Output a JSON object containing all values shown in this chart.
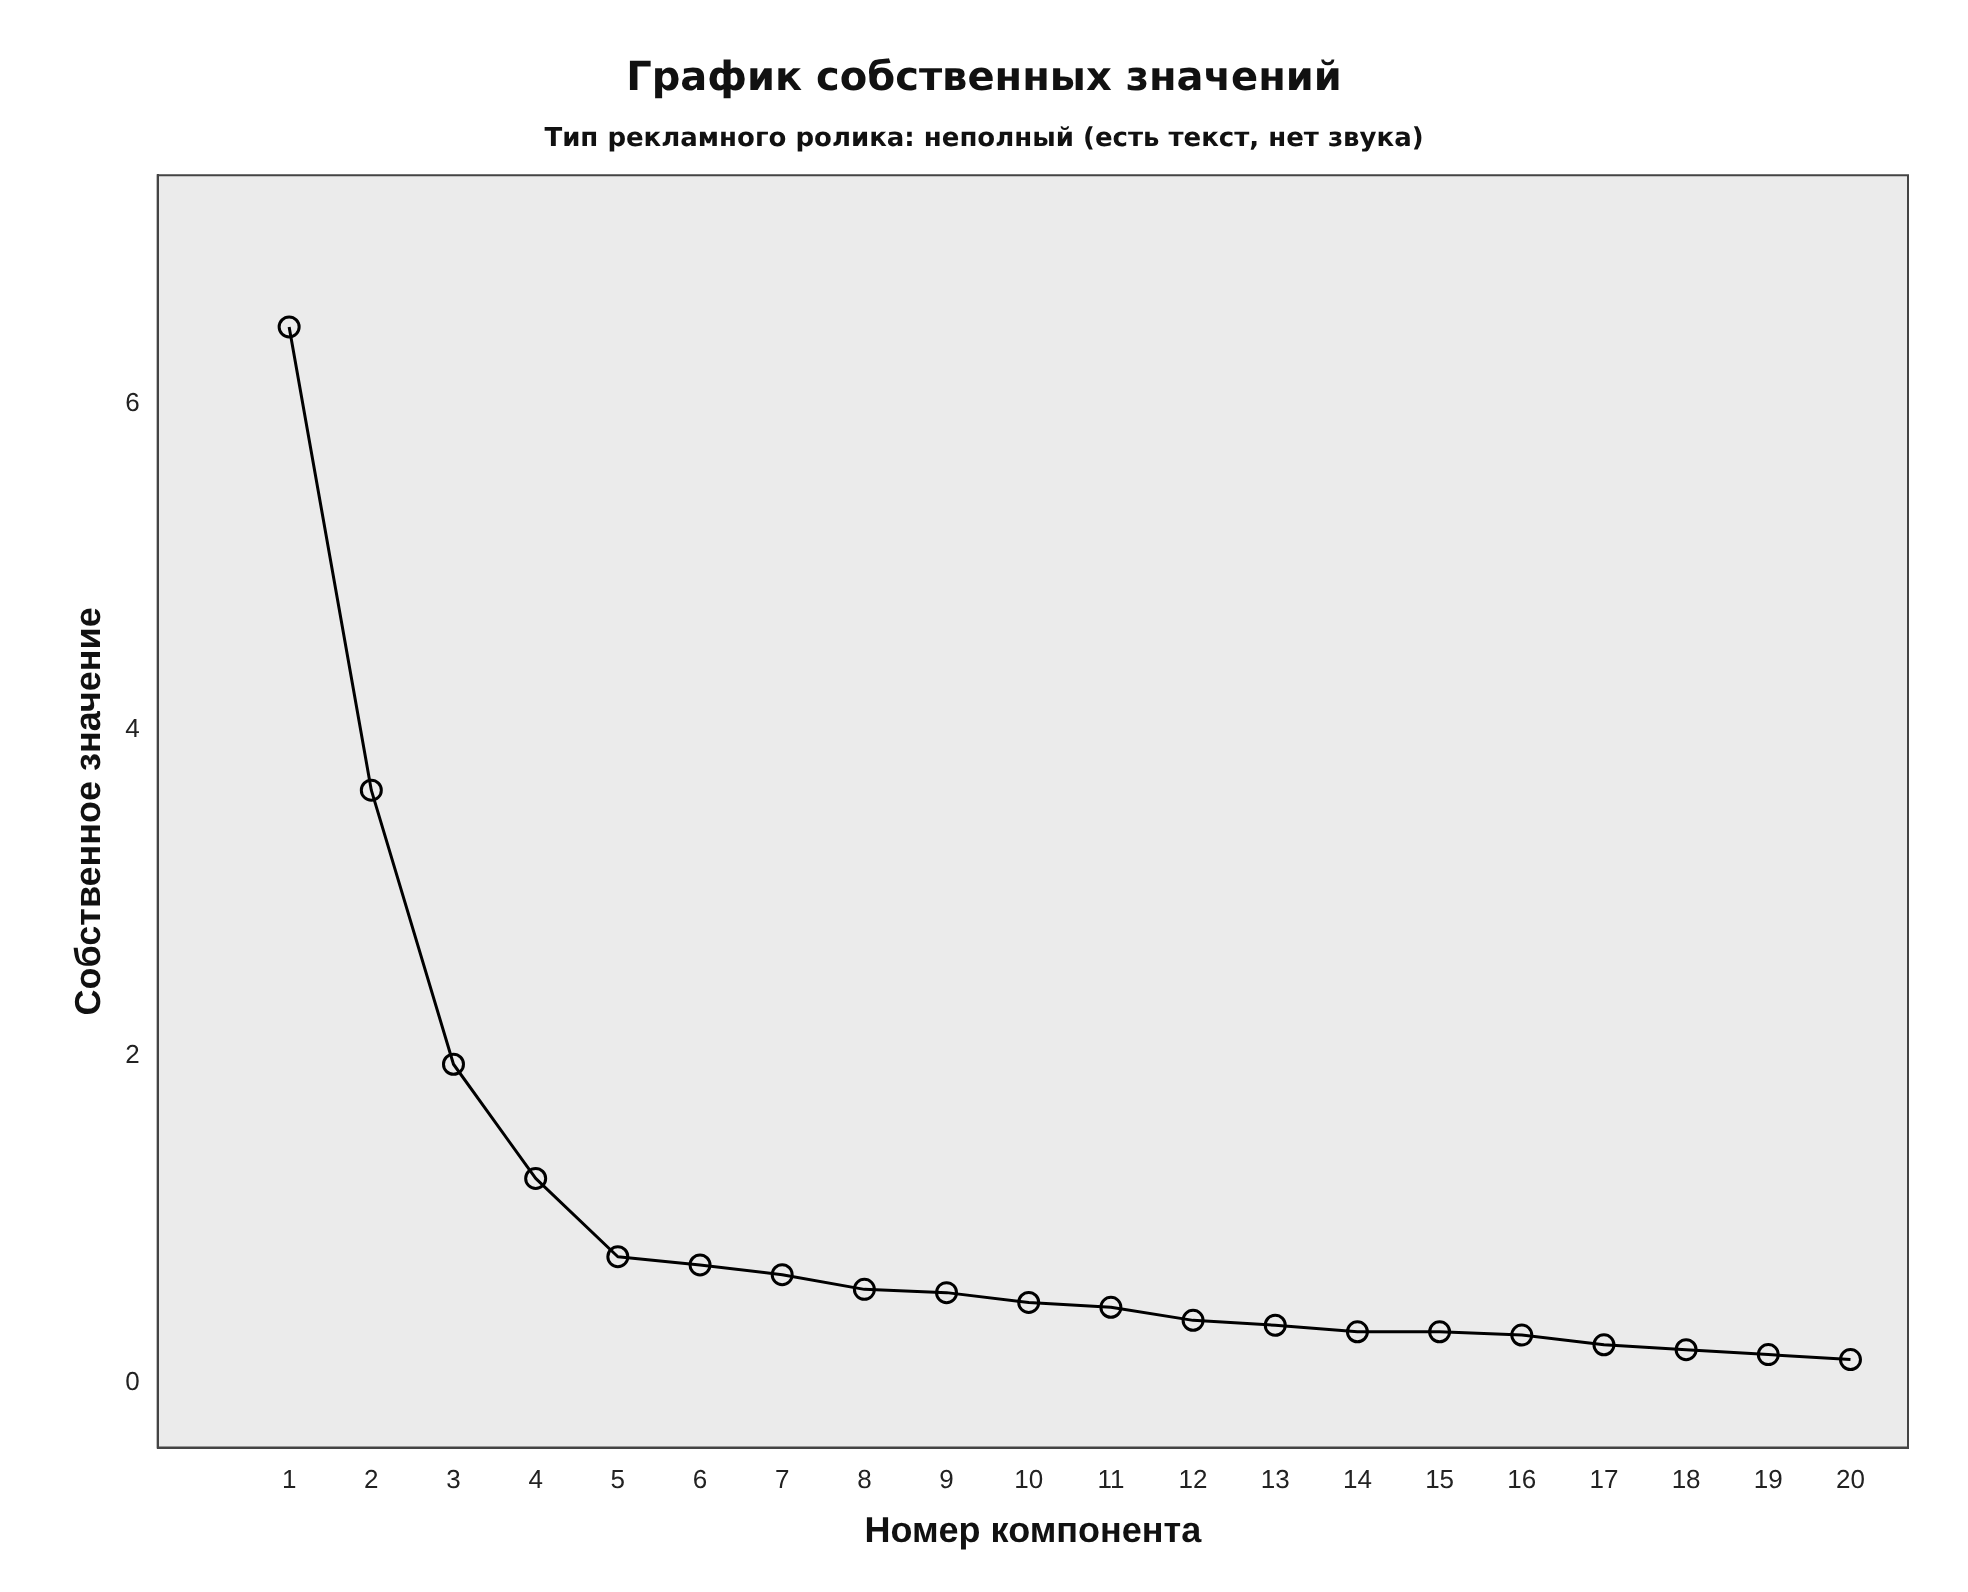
{
  "chart_data": {
    "type": "line",
    "title": "График собственных значений",
    "subtitle": "Тип рекламного ролика: неполный (есть текст, нет звука)",
    "xlabel": "Номер компонента",
    "ylabel": "Собственное значение",
    "x": [
      1,
      2,
      3,
      4,
      5,
      6,
      7,
      8,
      9,
      10,
      11,
      12,
      13,
      14,
      15,
      16,
      17,
      18,
      19,
      20
    ],
    "series": [
      {
        "color": "#000000",
        "values": [
          6.47,
          3.63,
          1.95,
          1.25,
          0.77,
          0.72,
          0.66,
          0.57,
          0.55,
          0.49,
          0.46,
          0.38,
          0.35,
          0.31,
          0.31,
          0.29,
          0.23,
          0.2,
          0.17,
          0.14
        ]
      }
    ],
    "xlim": [
      -0.6,
      20.7
    ],
    "xticks": [
      1,
      2,
      3,
      4,
      5,
      6,
      7,
      8,
      9,
      10,
      11,
      12,
      13,
      14,
      15,
      16,
      17,
      18,
      19,
      20
    ],
    "ylim": [
      -0.4,
      7.4
    ],
    "yticks": [
      0,
      2,
      4,
      6
    ],
    "grid": false,
    "legend": false,
    "marker": "circle",
    "line_style": "solid"
  }
}
